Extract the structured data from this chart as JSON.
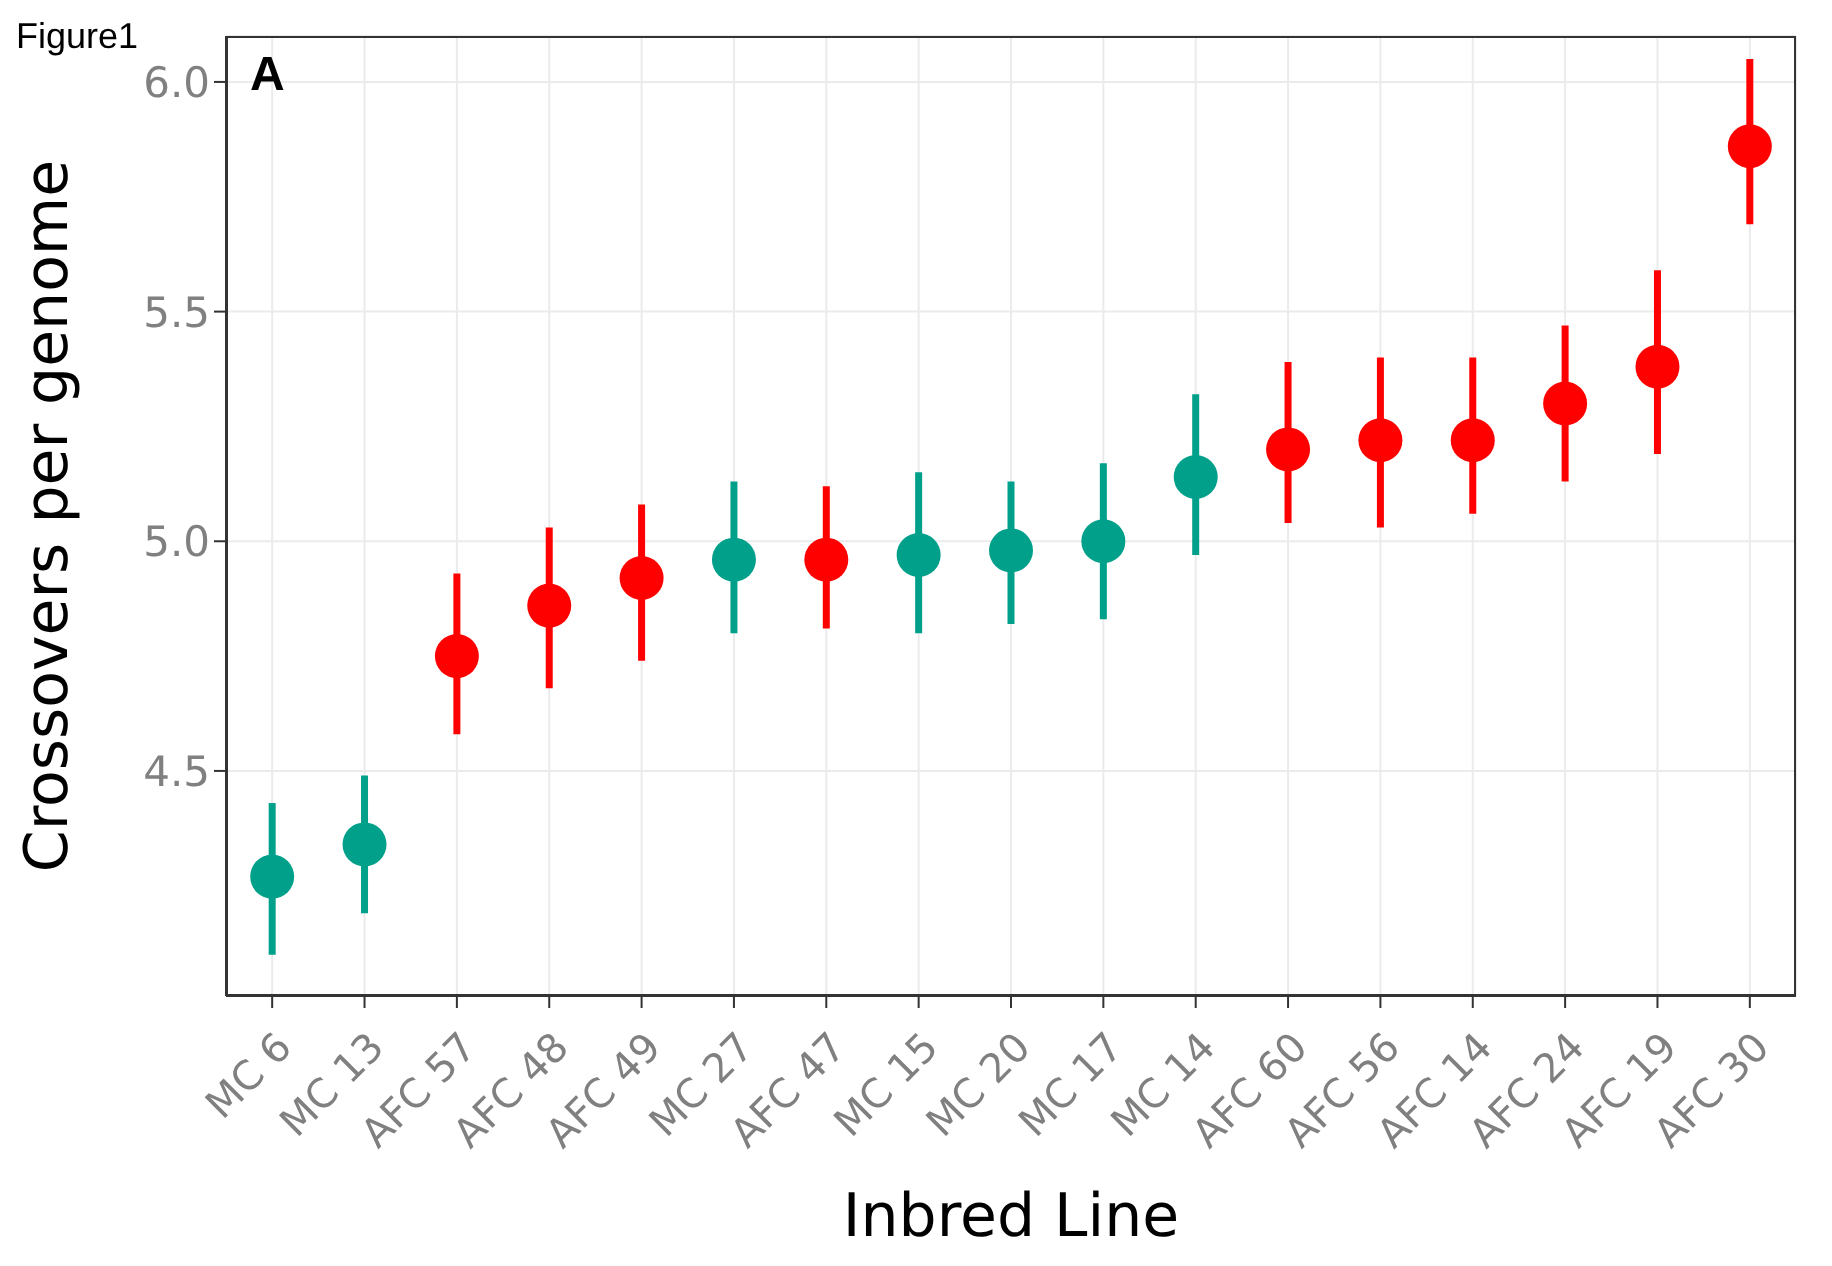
{
  "chart_data": {
    "type": "scatter",
    "xlabel": "Inbred Line",
    "ylabel": "Crossovers per genome",
    "annotations": [
      "Figure1",
      "A"
    ],
    "categories": [
      "MC 6",
      "MC 13",
      "AFC 57",
      "AFC 48",
      "AFC 49",
      "MC 27",
      "AFC 47",
      "MC 15",
      "MC 20",
      "MC 17",
      "MC 14",
      "AFC 60",
      "AFC 56",
      "AFC 14",
      "AFC 24",
      "AFC 19",
      "AFC 30"
    ],
    "values": [
      4.27,
      4.34,
      4.75,
      4.86,
      4.92,
      4.96,
      4.96,
      4.97,
      4.98,
      5.0,
      5.14,
      5.2,
      5.22,
      5.22,
      5.3,
      5.38,
      5.86
    ],
    "errors": [
      [
        4.1,
        4.43
      ],
      [
        4.19,
        4.49
      ],
      [
        4.58,
        4.93
      ],
      [
        4.68,
        5.03
      ],
      [
        4.74,
        5.08
      ],
      [
        4.8,
        5.13
      ],
      [
        4.81,
        5.12
      ],
      [
        4.8,
        5.15
      ],
      [
        4.82,
        5.13
      ],
      [
        4.83,
        5.17
      ],
      [
        4.97,
        5.32
      ],
      [
        5.04,
        5.39
      ],
      [
        5.03,
        5.4
      ],
      [
        5.06,
        5.4
      ],
      [
        5.13,
        5.47
      ],
      [
        5.19,
        5.59
      ],
      [
        5.69,
        6.05
      ]
    ],
    "colors": [
      "#00a08a",
      "#00a08a",
      "#ff0000",
      "#ff0000",
      "#ff0000",
      "#00a08a",
      "#ff0000",
      "#00a08a",
      "#00a08a",
      "#00a08a",
      "#00a08a",
      "#ff0000",
      "#ff0000",
      "#ff0000",
      "#ff0000",
      "#ff0000",
      "#ff0000"
    ],
    "ylim": [
      4.01,
      6.1
    ],
    "yticks": [
      4.5,
      {
        "value": 5,
        "label": "5.0"
      },
      5.5,
      {
        "value": 6,
        "label": "6.0"
      }
    ],
    "grid": true,
    "marker": "circle"
  }
}
